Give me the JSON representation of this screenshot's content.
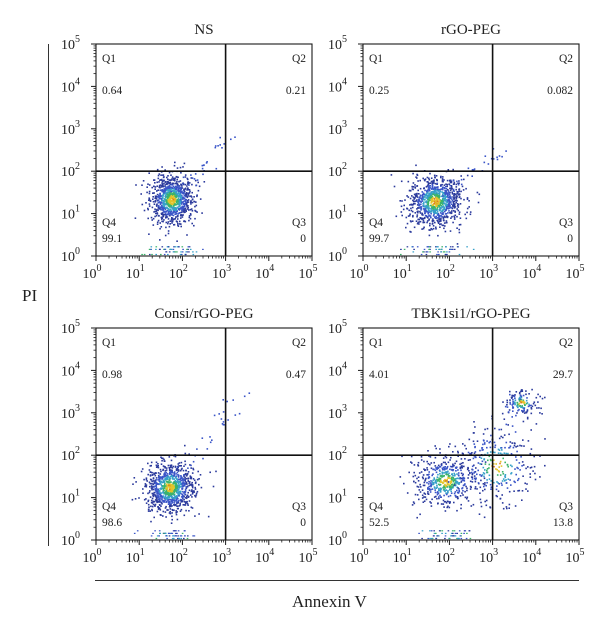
{
  "figure": {
    "ylabel": "PI",
    "xlabel": "Annexin V"
  },
  "chart_data": [
    {
      "type": "scatter",
      "title": "NS",
      "xscale": "log",
      "yscale": "log",
      "xlim": [
        1,
        100000
      ],
      "ylim": [
        1,
        100000
      ],
      "x_ticks": [
        "10",
        "10",
        "10",
        "10",
        "10",
        "10"
      ],
      "x_tick_exponents": [
        "0",
        "1",
        "2",
        "3",
        "4",
        "5"
      ],
      "y_ticks": [
        "10",
        "10",
        "10",
        "10",
        "10",
        "10"
      ],
      "y_tick_exponents": [
        "0",
        "1",
        "2",
        "3",
        "4",
        "5"
      ],
      "gates": {
        "x": 1000,
        "y": 100
      },
      "quadrants": [
        {
          "name": "Q1",
          "value": "0.64"
        },
        {
          "name": "Q2",
          "value": "0.21"
        },
        {
          "name": "Q3",
          "value": "0"
        },
        {
          "name": "Q4",
          "value": "99.1"
        }
      ],
      "clusters": [
        {
          "center": [
            55,
            22
          ],
          "spread": [
            0.25,
            0.28
          ],
          "weight": 1.0
        }
      ],
      "tail": {
        "from": [
          60,
          25
        ],
        "to": [
          1400,
          700
        ]
      }
    },
    {
      "type": "scatter",
      "title": "rGO-PEG",
      "xscale": "log",
      "yscale": "log",
      "xlim": [
        1,
        100000
      ],
      "ylim": [
        1,
        100000
      ],
      "x_ticks": [
        "10",
        "10",
        "10",
        "10",
        "10",
        "10"
      ],
      "x_tick_exponents": [
        "0",
        "1",
        "2",
        "3",
        "4",
        "5"
      ],
      "y_ticks": [
        "10",
        "10",
        "10",
        "10",
        "10",
        "10"
      ],
      "y_tick_exponents": [
        "0",
        "1",
        "2",
        "3",
        "4",
        "5"
      ],
      "gates": {
        "x": 1000,
        "y": 100
      },
      "quadrants": [
        {
          "name": "Q1",
          "value": "0.25"
        },
        {
          "name": "Q2",
          "value": "0.082"
        },
        {
          "name": "Q3",
          "value": "0"
        },
        {
          "name": "Q4",
          "value": "99.7"
        }
      ],
      "clusters": [
        {
          "center": [
            45,
            20
          ],
          "spread": [
            0.3,
            0.3
          ],
          "weight": 1.0
        }
      ],
      "tail": {
        "from": [
          60,
          25
        ],
        "to": [
          1500,
          300
        ]
      }
    },
    {
      "type": "scatter",
      "title": "Consi/rGO-PEG",
      "xscale": "log",
      "yscale": "log",
      "xlim": [
        1,
        100000
      ],
      "ylim": [
        1,
        100000
      ],
      "x_ticks": [
        "10",
        "10",
        "10",
        "10",
        "10",
        "10"
      ],
      "x_tick_exponents": [
        "0",
        "1",
        "2",
        "3",
        "4",
        "5"
      ],
      "y_ticks": [
        "10",
        "10",
        "10",
        "10",
        "10",
        "10"
      ],
      "y_tick_exponents": [
        "0",
        "1",
        "2",
        "3",
        "4",
        "5"
      ],
      "gates": {
        "x": 1000,
        "y": 100
      },
      "quadrants": [
        {
          "name": "Q1",
          "value": "0.98"
        },
        {
          "name": "Q2",
          "value": "0.47"
        },
        {
          "name": "Q3",
          "value": "0"
        },
        {
          "name": "Q4",
          "value": "98.6"
        }
      ],
      "clusters": [
        {
          "center": [
            50,
            18
          ],
          "spread": [
            0.28,
            0.3
          ],
          "weight": 1.0
        }
      ],
      "tail": {
        "from": [
          70,
          30
        ],
        "to": [
          2500,
          3000
        ]
      }
    },
    {
      "type": "scatter",
      "title": "TBK1si1/rGO-PEG",
      "xscale": "log",
      "yscale": "log",
      "xlim": [
        1,
        100000
      ],
      "ylim": [
        1,
        100000
      ],
      "x_ticks": [
        "10",
        "10",
        "10",
        "10",
        "10",
        "10"
      ],
      "x_tick_exponents": [
        "0",
        "1",
        "2",
        "3",
        "4",
        "5"
      ],
      "y_ticks": [
        "10",
        "10",
        "10",
        "10",
        "10",
        "10"
      ],
      "y_tick_exponents": [
        "0",
        "1",
        "2",
        "3",
        "4",
        "5"
      ],
      "gates": {
        "x": 1000,
        "y": 100
      },
      "quadrants": [
        {
          "name": "Q1",
          "value": "4.01"
        },
        {
          "name": "Q2",
          "value": "29.7"
        },
        {
          "name": "Q3",
          "value": "13.8"
        },
        {
          "name": "Q4",
          "value": "52.5"
        }
      ],
      "clusters": [
        {
          "center": [
            80,
            25
          ],
          "spread": [
            0.35,
            0.3
          ],
          "weight": 0.55
        },
        {
          "center": [
            1200,
            60
          ],
          "spread": [
            0.45,
            0.45
          ],
          "weight": 0.3
        },
        {
          "center": [
            4500,
            1800
          ],
          "spread": [
            0.2,
            0.15
          ],
          "weight": 0.15
        }
      ],
      "tail": {
        "from": [
          300,
          80
        ],
        "to": [
          4000,
          1800
        ]
      }
    }
  ],
  "colors": {
    "axis": "#1a1a1a",
    "gate": "#111111",
    "density": [
      "#2b3a9c",
      "#3a55c8",
      "#36a0c9",
      "#3bb36a",
      "#e3c42a",
      "#e07a1a"
    ]
  }
}
